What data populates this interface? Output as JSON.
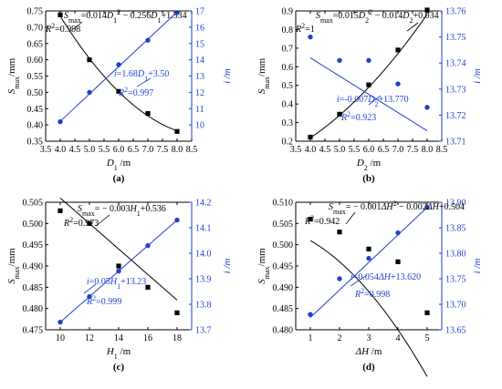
{
  "chart_data": [
    {
      "type": "scatter",
      "panel_label": "(a)",
      "xlabel": "D1 / m",
      "xlabel_parts": {
        "var": "D",
        "sub": "1",
        "unit": "/m"
      },
      "ylabel_left_parts": {
        "var": "S",
        "sub": "max",
        "unit": "/mm"
      },
      "ylabel_right": "i /m",
      "x": [
        4.0,
        5.0,
        6.0,
        7.0,
        8.0
      ],
      "xlim": [
        3.5,
        8.5
      ],
      "xticks": [
        3.5,
        4.0,
        4.5,
        5.0,
        5.5,
        6.0,
        6.5,
        7.0,
        7.5,
        8.0,
        8.5
      ],
      "xtick_labels": [
        "3.5",
        "4.0",
        "4.5",
        "5.0",
        "5.5",
        "6.0",
        "6.5",
        "7.0",
        "7.5",
        "8.0",
        "8.5"
      ],
      "ylim_left": [
        0.35,
        0.75
      ],
      "yticks_left": [
        0.35,
        0.4,
        0.45,
        0.5,
        0.55,
        0.6,
        0.65,
        0.7,
        0.75
      ],
      "ytick_labels_left": [
        "0.35",
        "0.40",
        "0.45",
        "0.50",
        "0.55",
        "0.60",
        "0.65",
        "0.70",
        "0.75"
      ],
      "ylim_right": [
        9,
        17
      ],
      "yticks_right": [
        10,
        11,
        12,
        13,
        14,
        15,
        16,
        17
      ],
      "ytick_labels_right": [
        "10",
        "11",
        "12",
        "13",
        "14",
        "15",
        "16",
        "17"
      ],
      "series": [
        {
          "axis": "left",
          "values": [
            0.738,
            0.6,
            0.503,
            0.435,
            0.38
          ],
          "marker": "square",
          "color": "#000000",
          "fit": {
            "kind": "quadratic",
            "coeffs": [
              0.014,
              -0.256,
              1.534
            ]
          }
        },
        {
          "axis": "right",
          "values": [
            10.2,
            12.0,
            13.7,
            15.2,
            16.9
          ],
          "marker": "circle",
          "color": "#1f3fcf",
          "fit": {
            "kind": "linear",
            "coeffs": [
              1.68,
              3.5
            ]
          }
        }
      ],
      "annotations": [
        {
          "parts": [
            {
              "t": "S"
            },
            {
              "t": "max",
              "sub": true
            },
            {
              "t": "=0.014"
            },
            {
              "t": "D"
            },
            {
              "t": "1",
              "sub": true
            },
            {
              "t": "2",
              "sup": true
            },
            {
              "t": " − 0.256"
            },
            {
              "t": "D"
            },
            {
              "t": "1",
              "sub": true
            },
            {
              "t": "+1.534"
            }
          ],
          "color": "#000000"
        },
        {
          "parts": [
            {
              "t": "R"
            },
            {
              "t": "2",
              "sup": true
            },
            {
              "t": "=0.998"
            }
          ],
          "color": "#000000"
        },
        {
          "parts": [
            {
              "t": "i"
            },
            {
              "t": "=1.68"
            },
            {
              "t": "D"
            },
            {
              "t": "1",
              "sub": true
            },
            {
              "t": "+3.50"
            }
          ],
          "color": "#1f3fcf"
        },
        {
          "parts": [
            {
              "t": "R"
            },
            {
              "t": "2",
              "sup": true
            },
            {
              "t": "=0.997"
            }
          ],
          "color": "#1f3fcf"
        }
      ]
    },
    {
      "type": "scatter",
      "panel_label": "(b)",
      "xlabel": "D2 / m",
      "xlabel_parts": {
        "var": "D",
        "sub": "2",
        "unit": "/m"
      },
      "ylabel_left_parts": {
        "var": "S",
        "sub": "max",
        "unit": "/mm"
      },
      "ylabel_right": "i /m",
      "x": [
        4.0,
        5.0,
        6.0,
        7.0,
        8.0
      ],
      "xlim": [
        3.5,
        8.5
      ],
      "xticks": [
        3.5,
        4.0,
        4.5,
        5.0,
        5.5,
        6.0,
        6.5,
        7.0,
        7.5,
        8.0,
        8.5
      ],
      "xtick_labels": [
        "3.5",
        "4.0",
        "4.5",
        "5.0",
        "5.5",
        "6.0",
        "6.5",
        "7.0",
        "7.5",
        "8.0",
        "8.5"
      ],
      "ylim_left": [
        0.2,
        0.9
      ],
      "yticks_left": [
        0.2,
        0.3,
        0.4,
        0.5,
        0.6,
        0.7,
        0.8,
        0.9
      ],
      "ytick_labels_left": [
        "0.2",
        "0.3",
        "0.4",
        "0.5",
        "0.6",
        "0.7",
        "0.8",
        "0.9"
      ],
      "ylim_right": [
        13.71,
        13.76
      ],
      "yticks_right": [
        13.71,
        13.72,
        13.73,
        13.74,
        13.75,
        13.76
      ],
      "ytick_labels_right": [
        "13.71",
        "13.72",
        "13.73",
        "13.74",
        "13.75",
        "13.76"
      ],
      "series": [
        {
          "axis": "left",
          "values": [
            0.222,
            0.345,
            0.503,
            0.69,
            0.905
          ],
          "marker": "square",
          "color": "#000000",
          "fit": {
            "kind": "quadratic",
            "coeffs": [
              0.015,
              -0.014,
              0.034
            ]
          }
        },
        {
          "axis": "right",
          "values": [
            13.75,
            13.741,
            13.741,
            13.732,
            13.723
          ],
          "marker": "circle",
          "color": "#1f3fcf",
          "fit": {
            "kind": "linear",
            "coeffs": [
              -0.007,
              13.77
            ]
          }
        }
      ],
      "annotations": [
        {
          "parts": [
            {
              "t": "S"
            },
            {
              "t": "max",
              "sub": true
            },
            {
              "t": "=0.015"
            },
            {
              "t": "D"
            },
            {
              "t": "2",
              "sub": true
            },
            {
              "t": "2",
              "sup": true
            },
            {
              "t": " − 0.014"
            },
            {
              "t": "D"
            },
            {
              "t": "2",
              "sub": true
            },
            {
              "t": "+0.034"
            }
          ],
          "color": "#000000"
        },
        {
          "parts": [
            {
              "t": "R"
            },
            {
              "t": "2",
              "sup": true
            },
            {
              "t": "=1"
            }
          ],
          "color": "#000000"
        },
        {
          "parts": [
            {
              "t": "i"
            },
            {
              "t": "=-0.007"
            },
            {
              "t": "D"
            },
            {
              "t": "2",
              "sub": true
            },
            {
              "t": "+13.770"
            }
          ],
          "color": "#1f3fcf"
        },
        {
          "parts": [
            {
              "t": "R"
            },
            {
              "t": "2",
              "sup": true
            },
            {
              "t": "=0.923"
            }
          ],
          "color": "#1f3fcf"
        }
      ]
    },
    {
      "type": "scatter",
      "panel_label": "(c)",
      "xlabel": "H1 / m",
      "xlabel_parts": {
        "var": "H",
        "sub": "1",
        "unit": "/m"
      },
      "ylabel_left_parts": {
        "var": "S",
        "sub": "max",
        "unit": "/mm"
      },
      "ylabel_right": "i /m",
      "x": [
        10,
        12,
        14,
        16,
        18
      ],
      "xlim": [
        9,
        19
      ],
      "xticks": [
        10,
        12,
        14,
        16,
        18
      ],
      "xtick_labels": [
        "10",
        "12",
        "14",
        "16",
        "18"
      ],
      "ylim_left": [
        0.475,
        0.505
      ],
      "yticks_left": [
        0.475,
        0.48,
        0.485,
        0.49,
        0.495,
        0.5,
        0.505
      ],
      "ytick_labels_left": [
        "0.475",
        "0.480",
        "0.485",
        "0.490",
        "0.495",
        "0.500",
        "0.505"
      ],
      "ylim_right": [
        13.7,
        14.2
      ],
      "yticks_right": [
        13.7,
        13.8,
        13.9,
        14.0,
        14.1,
        14.2
      ],
      "ytick_labels_right": [
        "13.7",
        "13.8",
        "13.9",
        "14.0",
        "14.1",
        "14.2"
      ],
      "series": [
        {
          "axis": "left",
          "values": [
            0.503,
            0.5,
            0.49,
            0.485,
            0.479
          ],
          "marker": "square",
          "color": "#000000",
          "fit": {
            "kind": "linear",
            "coeffs": [
              -0.003,
              0.536
            ]
          }
        },
        {
          "axis": "right",
          "values": [
            13.73,
            13.83,
            13.93,
            14.03,
            14.13
          ],
          "marker": "circle",
          "color": "#1f3fcf",
          "fit": {
            "kind": "linear",
            "coeffs": [
              0.05,
              13.23
            ]
          }
        }
      ],
      "annotations": [
        {
          "parts": [
            {
              "t": "S"
            },
            {
              "t": "max",
              "sub": true
            },
            {
              "t": "= − 0.003"
            },
            {
              "t": "H"
            },
            {
              "t": "1",
              "sub": true
            },
            {
              "t": "+0.536"
            }
          ],
          "color": "#000000"
        },
        {
          "parts": [
            {
              "t": "R"
            },
            {
              "t": "2",
              "sup": true
            },
            {
              "t": "=0.973"
            }
          ],
          "color": "#000000"
        },
        {
          "parts": [
            {
              "t": "i"
            },
            {
              "t": "=0.05"
            },
            {
              "t": "H"
            },
            {
              "t": "1",
              "sub": true
            },
            {
              "t": "+13.23"
            }
          ],
          "color": "#1f3fcf"
        },
        {
          "parts": [
            {
              "t": "R"
            },
            {
              "t": "2",
              "sup": true
            },
            {
              "t": "=0.999"
            }
          ],
          "color": "#1f3fcf"
        }
      ]
    },
    {
      "type": "scatter",
      "panel_label": "(d)",
      "xlabel": "ΔH / m",
      "xlabel_parts": {
        "var": "ΔH",
        "sub": "",
        "unit": "/m"
      },
      "ylabel_left_parts": {
        "var": "S",
        "sub": "max",
        "unit": "/mm"
      },
      "ylabel_right": "i /m",
      "x": [
        1,
        2,
        3,
        4,
        5
      ],
      "xlim": [
        0.5,
        5.5
      ],
      "xticks": [
        1,
        2,
        3,
        4,
        5
      ],
      "xtick_labels": [
        "1",
        "2",
        "3",
        "4",
        "5"
      ],
      "ylim_left": [
        0.48,
        0.51
      ],
      "yticks_left": [
        0.48,
        0.485,
        0.49,
        0.495,
        0.5,
        0.505,
        0.51
      ],
      "ytick_labels_left": [
        "0.480",
        "0.485",
        "0.490",
        "0.495",
        "0.500",
        "0.505",
        "0.510"
      ],
      "ylim_right": [
        13.65,
        13.9
      ],
      "yticks_right": [
        13.65,
        13.7,
        13.75,
        13.8,
        13.85,
        13.9
      ],
      "ytick_labels_right": [
        "13.65",
        "13.70",
        "13.75",
        "13.80",
        "13.85",
        "13.90"
      ],
      "series": [
        {
          "axis": "left",
          "values": [
            0.506,
            0.503,
            0.499,
            0.496,
            0.484
          ],
          "marker": "square",
          "color": "#000000",
          "fit": {
            "kind": "quadratic",
            "coeffs": [
              -0.001,
              -0.002,
              0.504
            ]
          }
        },
        {
          "axis": "right",
          "values": [
            13.68,
            13.75,
            13.79,
            13.84,
            13.89
          ],
          "marker": "circle",
          "color": "#1f3fcf",
          "fit": {
            "kind": "linear",
            "coeffs": [
              0.054,
              13.62
            ]
          }
        }
      ],
      "annotations": [
        {
          "parts": [
            {
              "t": "S"
            },
            {
              "t": "max",
              "sub": true
            },
            {
              "t": "= − 0.001"
            },
            {
              "t": "ΔH"
            },
            {
              "t": "2",
              "sup": true
            },
            {
              "t": " − 0.002"
            },
            {
              "t": "ΔH"
            },
            {
              "t": "+0.504"
            }
          ],
          "color": "#000000"
        },
        {
          "parts": [
            {
              "t": "R"
            },
            {
              "t": "2",
              "sup": true
            },
            {
              "t": "=0.942"
            }
          ],
          "color": "#000000"
        },
        {
          "parts": [
            {
              "t": "i"
            },
            {
              "t": "=0.054"
            },
            {
              "t": "ΔH"
            },
            {
              "t": "+13.620"
            }
          ],
          "color": "#1f3fcf"
        },
        {
          "parts": [
            {
              "t": "R"
            },
            {
              "t": "2",
              "sup": true
            },
            {
              "t": "=0.998"
            }
          ],
          "color": "#1f3fcf"
        }
      ]
    }
  ]
}
